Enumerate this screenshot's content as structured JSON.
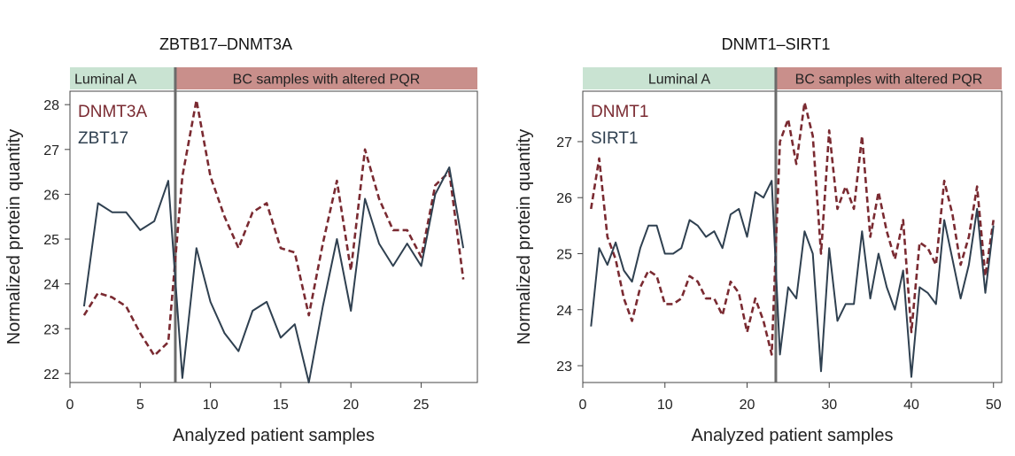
{
  "chart_data": [
    {
      "type": "line",
      "title": "ZBTB17–DNMT3A",
      "xlabel": "Analyzed patient samples",
      "ylabel": "Normalized protein quantity",
      "xlim": [
        0,
        29
      ],
      "ylim": [
        21.8,
        28.3
      ],
      "xticks": [
        0,
        5,
        10,
        15,
        20,
        25
      ],
      "yticks": [
        22,
        23,
        24,
        25,
        26,
        27,
        28
      ],
      "divider_x": 7.5,
      "groups": [
        {
          "label": "Luminal A",
          "x_start": 0,
          "x_end": 7.5,
          "color": "#c9e3d2"
        },
        {
          "label": "BC samples with altered PQR",
          "x_start": 7.5,
          "x_end": 29,
          "color": "#c98f8b"
        }
      ],
      "legend_position": "top-left",
      "x": [
        1,
        2,
        3,
        4,
        5,
        6,
        7,
        8,
        9,
        10,
        11,
        12,
        13,
        14,
        15,
        16,
        17,
        18,
        19,
        20,
        21,
        22,
        23,
        24,
        25,
        26,
        27,
        28
      ],
      "series": [
        {
          "name": "DNMT3A",
          "style": "dashed",
          "color": "#7a2a31",
          "values": [
            23.3,
            23.8,
            23.7,
            23.5,
            22.9,
            22.4,
            22.7,
            26.4,
            28.1,
            26.4,
            25.5,
            24.8,
            25.6,
            25.8,
            24.8,
            24.7,
            23.3,
            24.9,
            26.3,
            24.3,
            27.0,
            25.9,
            25.2,
            25.2,
            24.6,
            26.2,
            26.5,
            24.1
          ]
        },
        {
          "name": "ZBT17",
          "style": "solid",
          "color": "#2f4050",
          "values": [
            23.5,
            25.8,
            25.6,
            25.6,
            25.2,
            25.4,
            26.3,
            21.9,
            24.8,
            23.6,
            22.9,
            22.5,
            23.4,
            23.6,
            22.8,
            23.1,
            21.8,
            23.5,
            25.0,
            23.4,
            25.9,
            24.9,
            24.4,
            24.9,
            24.4,
            26.0,
            26.6,
            24.8
          ]
        }
      ]
    },
    {
      "type": "line",
      "title": "DNMT1–SIRT1",
      "xlabel": "Analyzed patient samples",
      "ylabel": "Normalized protein quantity",
      "xlim": [
        0,
        51
      ],
      "ylim": [
        22.7,
        27.9
      ],
      "xticks": [
        0,
        10,
        20,
        30,
        40,
        50
      ],
      "yticks": [
        23,
        24,
        25,
        26,
        27
      ],
      "divider_x": 23.5,
      "groups": [
        {
          "label": "Luminal A",
          "x_start": 0,
          "x_end": 23.5,
          "color": "#c9e3d2"
        },
        {
          "label": "BC samples with altered PQR",
          "x_start": 23.5,
          "x_end": 51,
          "color": "#c98f8b"
        }
      ],
      "legend_position": "top-left",
      "x": [
        1,
        2,
        3,
        4,
        5,
        6,
        7,
        8,
        9,
        10,
        11,
        12,
        13,
        14,
        15,
        16,
        17,
        18,
        19,
        20,
        21,
        22,
        23,
        24,
        25,
        26,
        27,
        28,
        29,
        30,
        31,
        32,
        33,
        34,
        35,
        36,
        37,
        38,
        39,
        40,
        41,
        42,
        43,
        44,
        45,
        46,
        47,
        48,
        49,
        50
      ],
      "series": [
        {
          "name": "DNMT1",
          "style": "dashed",
          "color": "#7a2a31",
          "values": [
            25.8,
            26.7,
            25.3,
            24.9,
            24.2,
            23.8,
            24.4,
            24.7,
            24.6,
            24.1,
            24.1,
            24.2,
            24.6,
            24.5,
            24.2,
            24.2,
            23.9,
            24.5,
            24.3,
            23.6,
            24.2,
            23.8,
            23.2,
            27.0,
            27.4,
            26.6,
            27.7,
            27.1,
            25.0,
            27.2,
            25.8,
            26.2,
            25.8,
            27.1,
            25.3,
            26.1,
            25.4,
            24.9,
            25.6,
            23.6,
            25.2,
            25.1,
            24.8,
            26.3,
            25.7,
            24.8,
            25.3,
            26.2,
            24.6,
            25.6
          ]
        },
        {
          "name": "SIRT1",
          "style": "solid",
          "color": "#2f4050",
          "values": [
            23.7,
            25.1,
            24.8,
            25.2,
            24.7,
            24.5,
            25.1,
            25.5,
            25.5,
            25.0,
            25.0,
            25.1,
            25.6,
            25.5,
            25.3,
            25.4,
            25.1,
            25.7,
            25.8,
            25.3,
            26.1,
            26.0,
            26.3,
            23.2,
            24.4,
            24.2,
            25.4,
            25.0,
            22.9,
            25.1,
            23.8,
            24.1,
            24.1,
            25.4,
            24.2,
            25.0,
            24.4,
            24.0,
            24.7,
            22.8,
            24.4,
            24.3,
            24.1,
            25.6,
            24.9,
            24.2,
            24.8,
            25.8,
            24.3,
            25.5
          ]
        }
      ]
    }
  ]
}
